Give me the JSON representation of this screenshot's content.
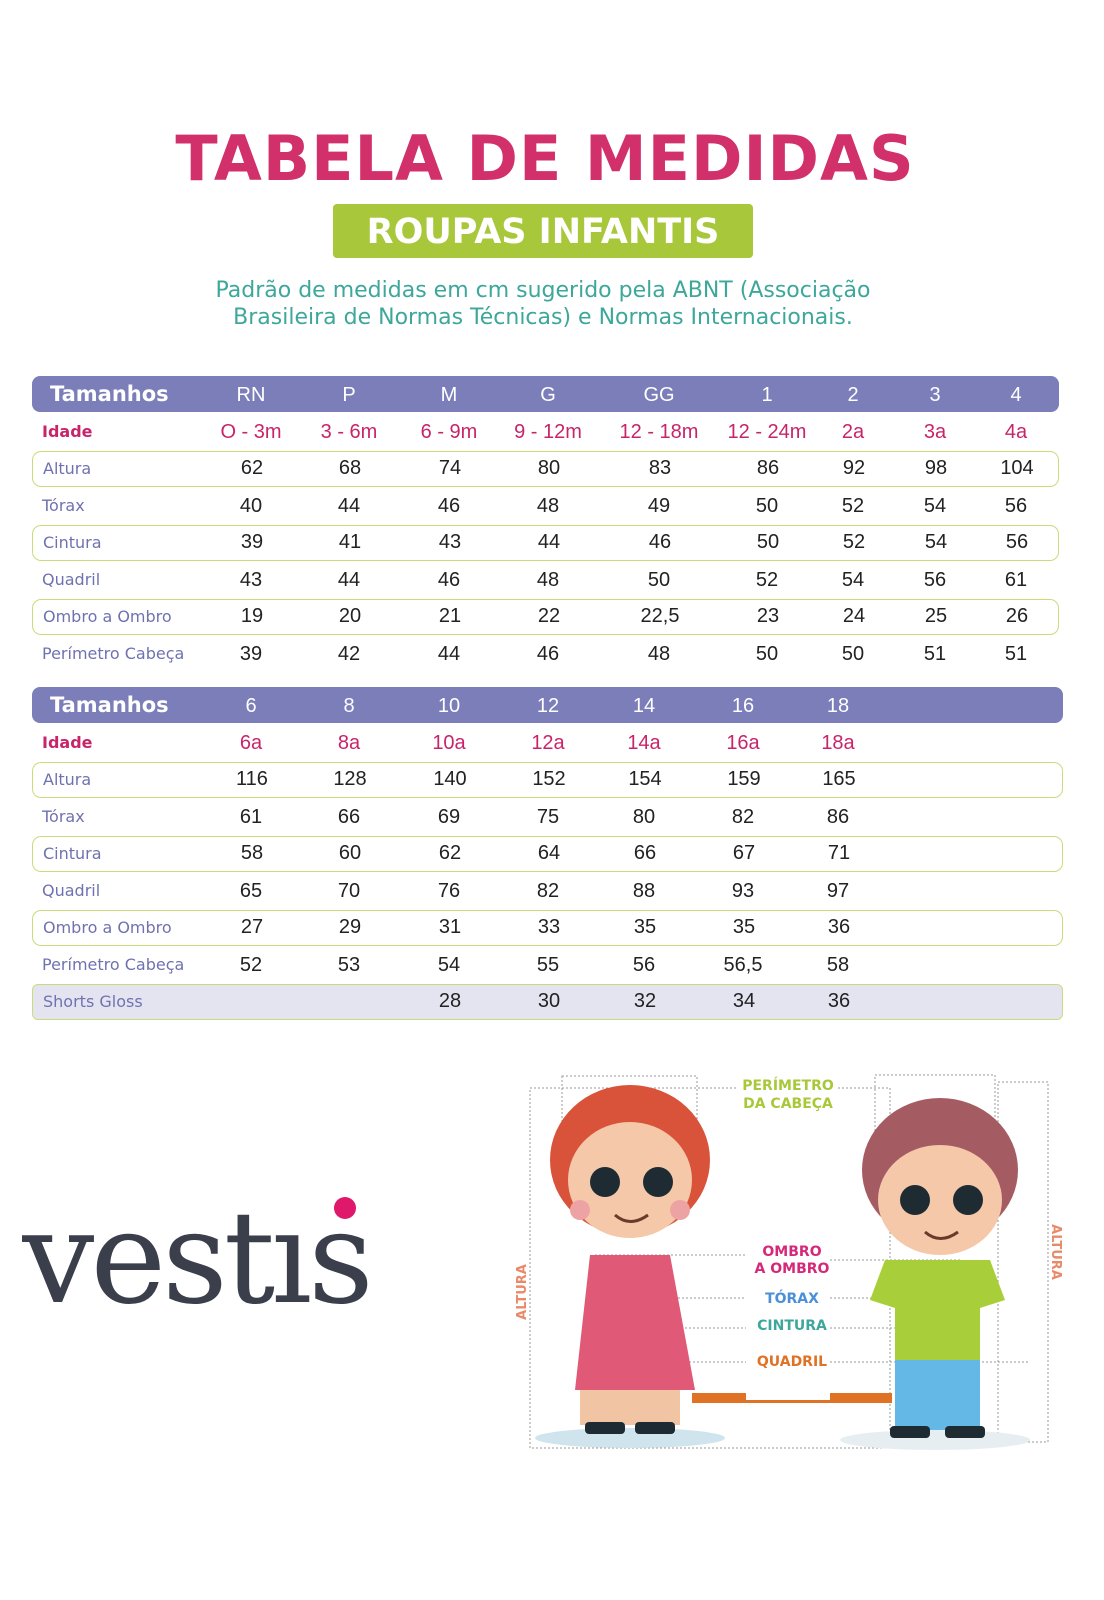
{
  "header": {
    "title": "TABELA DE MEDIDAS",
    "badge": "ROUPAS INFANTIS",
    "subtitle_line1": "Padrão de medidas em cm sugerido pela ABNT (Associação",
    "subtitle_line2": "Brasileira de Normas Técnicas) e Normas Internacionais."
  },
  "colors": {
    "title": "#d1306a",
    "badge": "#a9c73a",
    "subtitle": "#3da79b",
    "table_header": "#7b7eb9",
    "row_outline": "#c9dc7a",
    "age": "#c8246a",
    "label": "#6f72b0"
  },
  "table1": {
    "header_label": "Tamanhos",
    "sizes": [
      "RN",
      "P",
      "M",
      "G",
      "GG",
      "1",
      "2",
      "3",
      "4"
    ],
    "rows": [
      {
        "label": "Idade",
        "values": [
          "O - 3m",
          "3 - 6m",
          "6 - 9m",
          "9 - 12m",
          "12 - 18m",
          "12 - 24m",
          "2a",
          "3a",
          "4a"
        ]
      },
      {
        "label": "Altura",
        "values": [
          "62",
          "68",
          "74",
          "80",
          "83",
          "86",
          "92",
          "98",
          "104"
        ]
      },
      {
        "label": "Tórax",
        "values": [
          "40",
          "44",
          "46",
          "48",
          "49",
          "50",
          "52",
          "54",
          "56"
        ]
      },
      {
        "label": "Cintura",
        "values": [
          "39",
          "41",
          "43",
          "44",
          "46",
          "50",
          "52",
          "54",
          "56"
        ]
      },
      {
        "label": "Quadril",
        "values": [
          "43",
          "44",
          "46",
          "48",
          "50",
          "52",
          "54",
          "56",
          "61"
        ]
      },
      {
        "label": "Ombro a Ombro",
        "values": [
          "19",
          "20",
          "21",
          "22",
          "22,5",
          "23",
          "24",
          "25",
          "26"
        ]
      },
      {
        "label": "Perímetro Cabeça",
        "values": [
          "39",
          "42",
          "44",
          "46",
          "48",
          "50",
          "50",
          "51",
          "51"
        ]
      }
    ]
  },
  "table2": {
    "header_label": "Tamanhos",
    "sizes": [
      "6",
      "8",
      "10",
      "12",
      "14",
      "16",
      "18"
    ],
    "rows": [
      {
        "label": "Idade",
        "values": [
          "6a",
          "8a",
          "10a",
          "12a",
          "14a",
          "16a",
          "18a"
        ]
      },
      {
        "label": "Altura",
        "values": [
          "116",
          "128",
          "140",
          "152",
          "154",
          "159",
          "165"
        ]
      },
      {
        "label": "Tórax",
        "values": [
          "61",
          "66",
          "69",
          "75",
          "80",
          "82",
          "86"
        ]
      },
      {
        "label": "Cintura",
        "values": [
          "58",
          "60",
          "62",
          "64",
          "66",
          "67",
          "71"
        ]
      },
      {
        "label": "Quadril",
        "values": [
          "65",
          "70",
          "76",
          "82",
          "88",
          "93",
          "97"
        ]
      },
      {
        "label": "Ombro a Ombro",
        "values": [
          "27",
          "29",
          "31",
          "33",
          "35",
          "35",
          "36"
        ]
      },
      {
        "label": "Perímetro Cabeça",
        "values": [
          "52",
          "53",
          "54",
          "55",
          "56",
          "56,5",
          "58"
        ]
      },
      {
        "label": "Shorts Gloss",
        "values": [
          "",
          "",
          "28",
          "30",
          "32",
          "34",
          "36"
        ]
      }
    ]
  },
  "logo": {
    "text": "vestis"
  },
  "illustration": {
    "labels": {
      "perimetro": "PERÍMETRO",
      "perimetro2": "DA CABEÇA",
      "ombro": "OMBRO",
      "ombro2": "A OMBRO",
      "torax": "TÓRAX",
      "cintura": "CINTURA",
      "quadril": "QUADRIL",
      "altura": "ALTURA"
    }
  }
}
